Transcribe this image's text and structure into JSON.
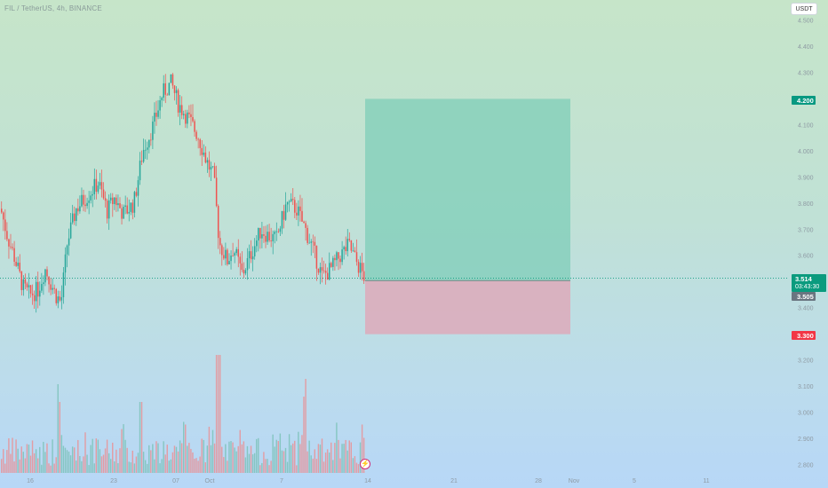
{
  "header": {
    "symbol_line": "FIL / TetherUS, 4h, BINANCE",
    "currency_button": "USDT"
  },
  "price_axis": {
    "ticks": [
      "4.500",
      "4.400",
      "4.300",
      "4.200",
      "4.100",
      "4.000",
      "3.900",
      "3.800",
      "3.700",
      "3.600",
      "3.500",
      "3.400",
      "3.300",
      "3.200",
      "3.100",
      "3.000",
      "2.900",
      "2.800"
    ]
  },
  "time_axis": {
    "ticks": [
      "16",
      "23",
      "07",
      "Oct",
      "7",
      "14",
      "21",
      "28",
      "Nov",
      "5",
      "11"
    ]
  },
  "price_tags": {
    "target": {
      "label": "4.200",
      "color": "#089981"
    },
    "current": {
      "price": "3.514",
      "countdown": "03:43:30",
      "color": "#089981"
    },
    "entry": {
      "label": "3.505",
      "color": "#6a7580"
    },
    "stop": {
      "label": "3.300",
      "color": "#f23645"
    }
  },
  "position_tool": {
    "entry": 3.505,
    "target": 4.2,
    "stop": 3.3,
    "profit_color": "#7fcdb8",
    "loss_color": "#e0a6b8"
  },
  "chart_data": {
    "type": "candlestick",
    "symbol": "FIL / TetherUS",
    "interval": "4h",
    "exchange": "BINANCE",
    "currency": "USDT",
    "last_price": 3.514,
    "ylim": [
      2.77,
      4.58
    ],
    "up_color": "#26a69a",
    "down_color": "#ef5350",
    "close_keypoints": [
      [
        0,
        3.78
      ],
      [
        8,
        3.67
      ],
      [
        15,
        3.6
      ],
      [
        25,
        3.48
      ],
      [
        33,
        3.45
      ],
      [
        42,
        3.47
      ],
      [
        50,
        3.55
      ],
      [
        62,
        3.45
      ],
      [
        68,
        3.42
      ],
      [
        75,
        3.65
      ],
      [
        85,
        3.78
      ],
      [
        95,
        3.82
      ],
      [
        110,
        3.88
      ],
      [
        120,
        3.77
      ],
      [
        128,
        3.82
      ],
      [
        138,
        3.76
      ],
      [
        150,
        3.8
      ],
      [
        160,
        4.0
      ],
      [
        172,
        4.1
      ],
      [
        182,
        4.22
      ],
      [
        192,
        4.26
      ],
      [
        200,
        4.18
      ],
      [
        212,
        4.12
      ],
      [
        222,
        4.06
      ],
      [
        232,
        3.96
      ],
      [
        240,
        3.9
      ],
      [
        246,
        3.65
      ],
      [
        255,
        3.58
      ],
      [
        262,
        3.63
      ],
      [
        272,
        3.53
      ],
      [
        282,
        3.61
      ],
      [
        293,
        3.7
      ],
      [
        300,
        3.68
      ],
      [
        310,
        3.66
      ],
      [
        322,
        3.8
      ],
      [
        333,
        3.78
      ],
      [
        343,
        3.7
      ],
      [
        352,
        3.62
      ],
      [
        362,
        3.52
      ],
      [
        372,
        3.55
      ],
      [
        382,
        3.6
      ],
      [
        392,
        3.64
      ],
      [
        400,
        3.58
      ],
      [
        410,
        3.514
      ]
    ],
    "volume_spike_x": [
      245,
      342,
      66,
      158
    ]
  }
}
